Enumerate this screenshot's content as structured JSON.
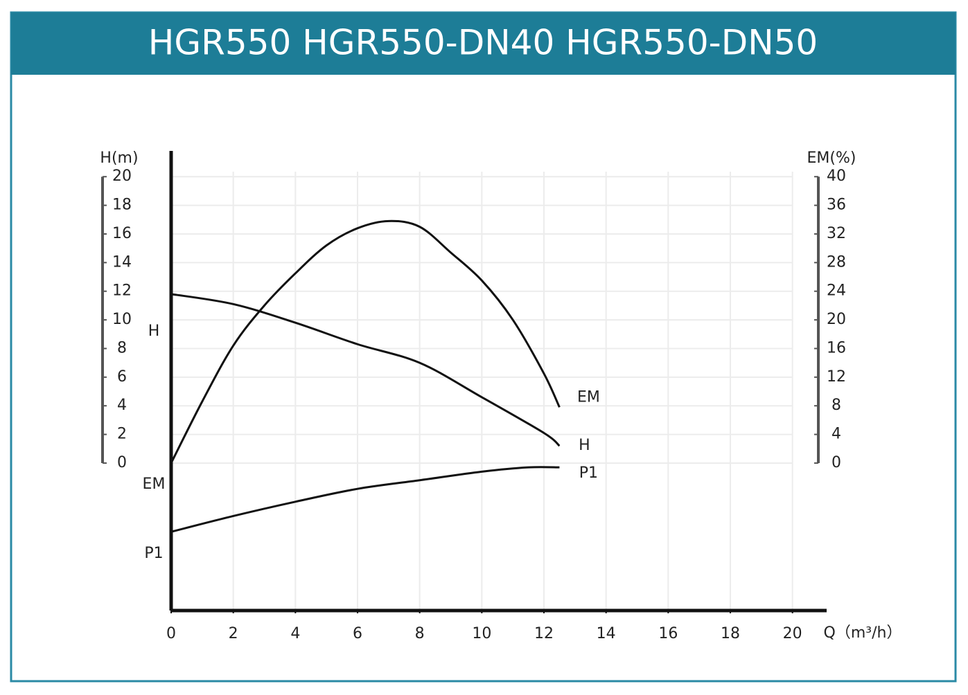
{
  "chart_data": {
    "type": "line",
    "title": "HGR550 HGR550-DN40 HGR550-DN50",
    "y_label": "H(m)",
    "y2_label": "EM(%)",
    "x_label": "Q（m³/h）",
    "xlim": [
      0,
      21.1
    ],
    "xticks": [
      0,
      2,
      4,
      6,
      8,
      10,
      12,
      14,
      16,
      18,
      20
    ],
    "ylim": [
      -10.3,
      21.8
    ],
    "yticks": [
      0,
      2,
      4,
      6,
      8,
      10,
      12,
      14,
      16,
      18,
      20
    ],
    "y2lim": [
      -20.6,
      43.6
    ],
    "y2ticks": [
      0,
      4,
      8,
      12,
      16,
      20,
      24,
      28,
      32,
      36,
      40
    ],
    "grid": true,
    "start_labels": [
      "H",
      "EM",
      "P1"
    ],
    "series": [
      {
        "name": "H",
        "color": "#111111",
        "x": [
          0,
          2,
          4,
          6,
          8,
          10,
          12,
          12.5
        ],
        "values": [
          11.8,
          11.1,
          9.8,
          8.3,
          7.0,
          4.6,
          2.1,
          1.2
        ]
      },
      {
        "name": "EM",
        "color": "#111111",
        "axis": "y2",
        "x": [
          0,
          1,
          2,
          3,
          4,
          5,
          6,
          7,
          8,
          9,
          10,
          11,
          12,
          12.5
        ],
        "values": [
          0,
          8.6,
          16.4,
          22,
          26.5,
          30.4,
          32.8,
          33.8,
          33,
          29.4,
          25.5,
          20,
          12.5,
          7.8
        ]
      },
      {
        "name": "P1",
        "color": "#111111",
        "x": [
          0,
          2,
          4,
          6,
          8,
          10,
          11.5,
          12.5
        ],
        "values": [
          -4.8,
          -3.7,
          -2.7,
          -1.8,
          -1.2,
          -0.6,
          -0.3,
          -0.3
        ]
      }
    ]
  }
}
